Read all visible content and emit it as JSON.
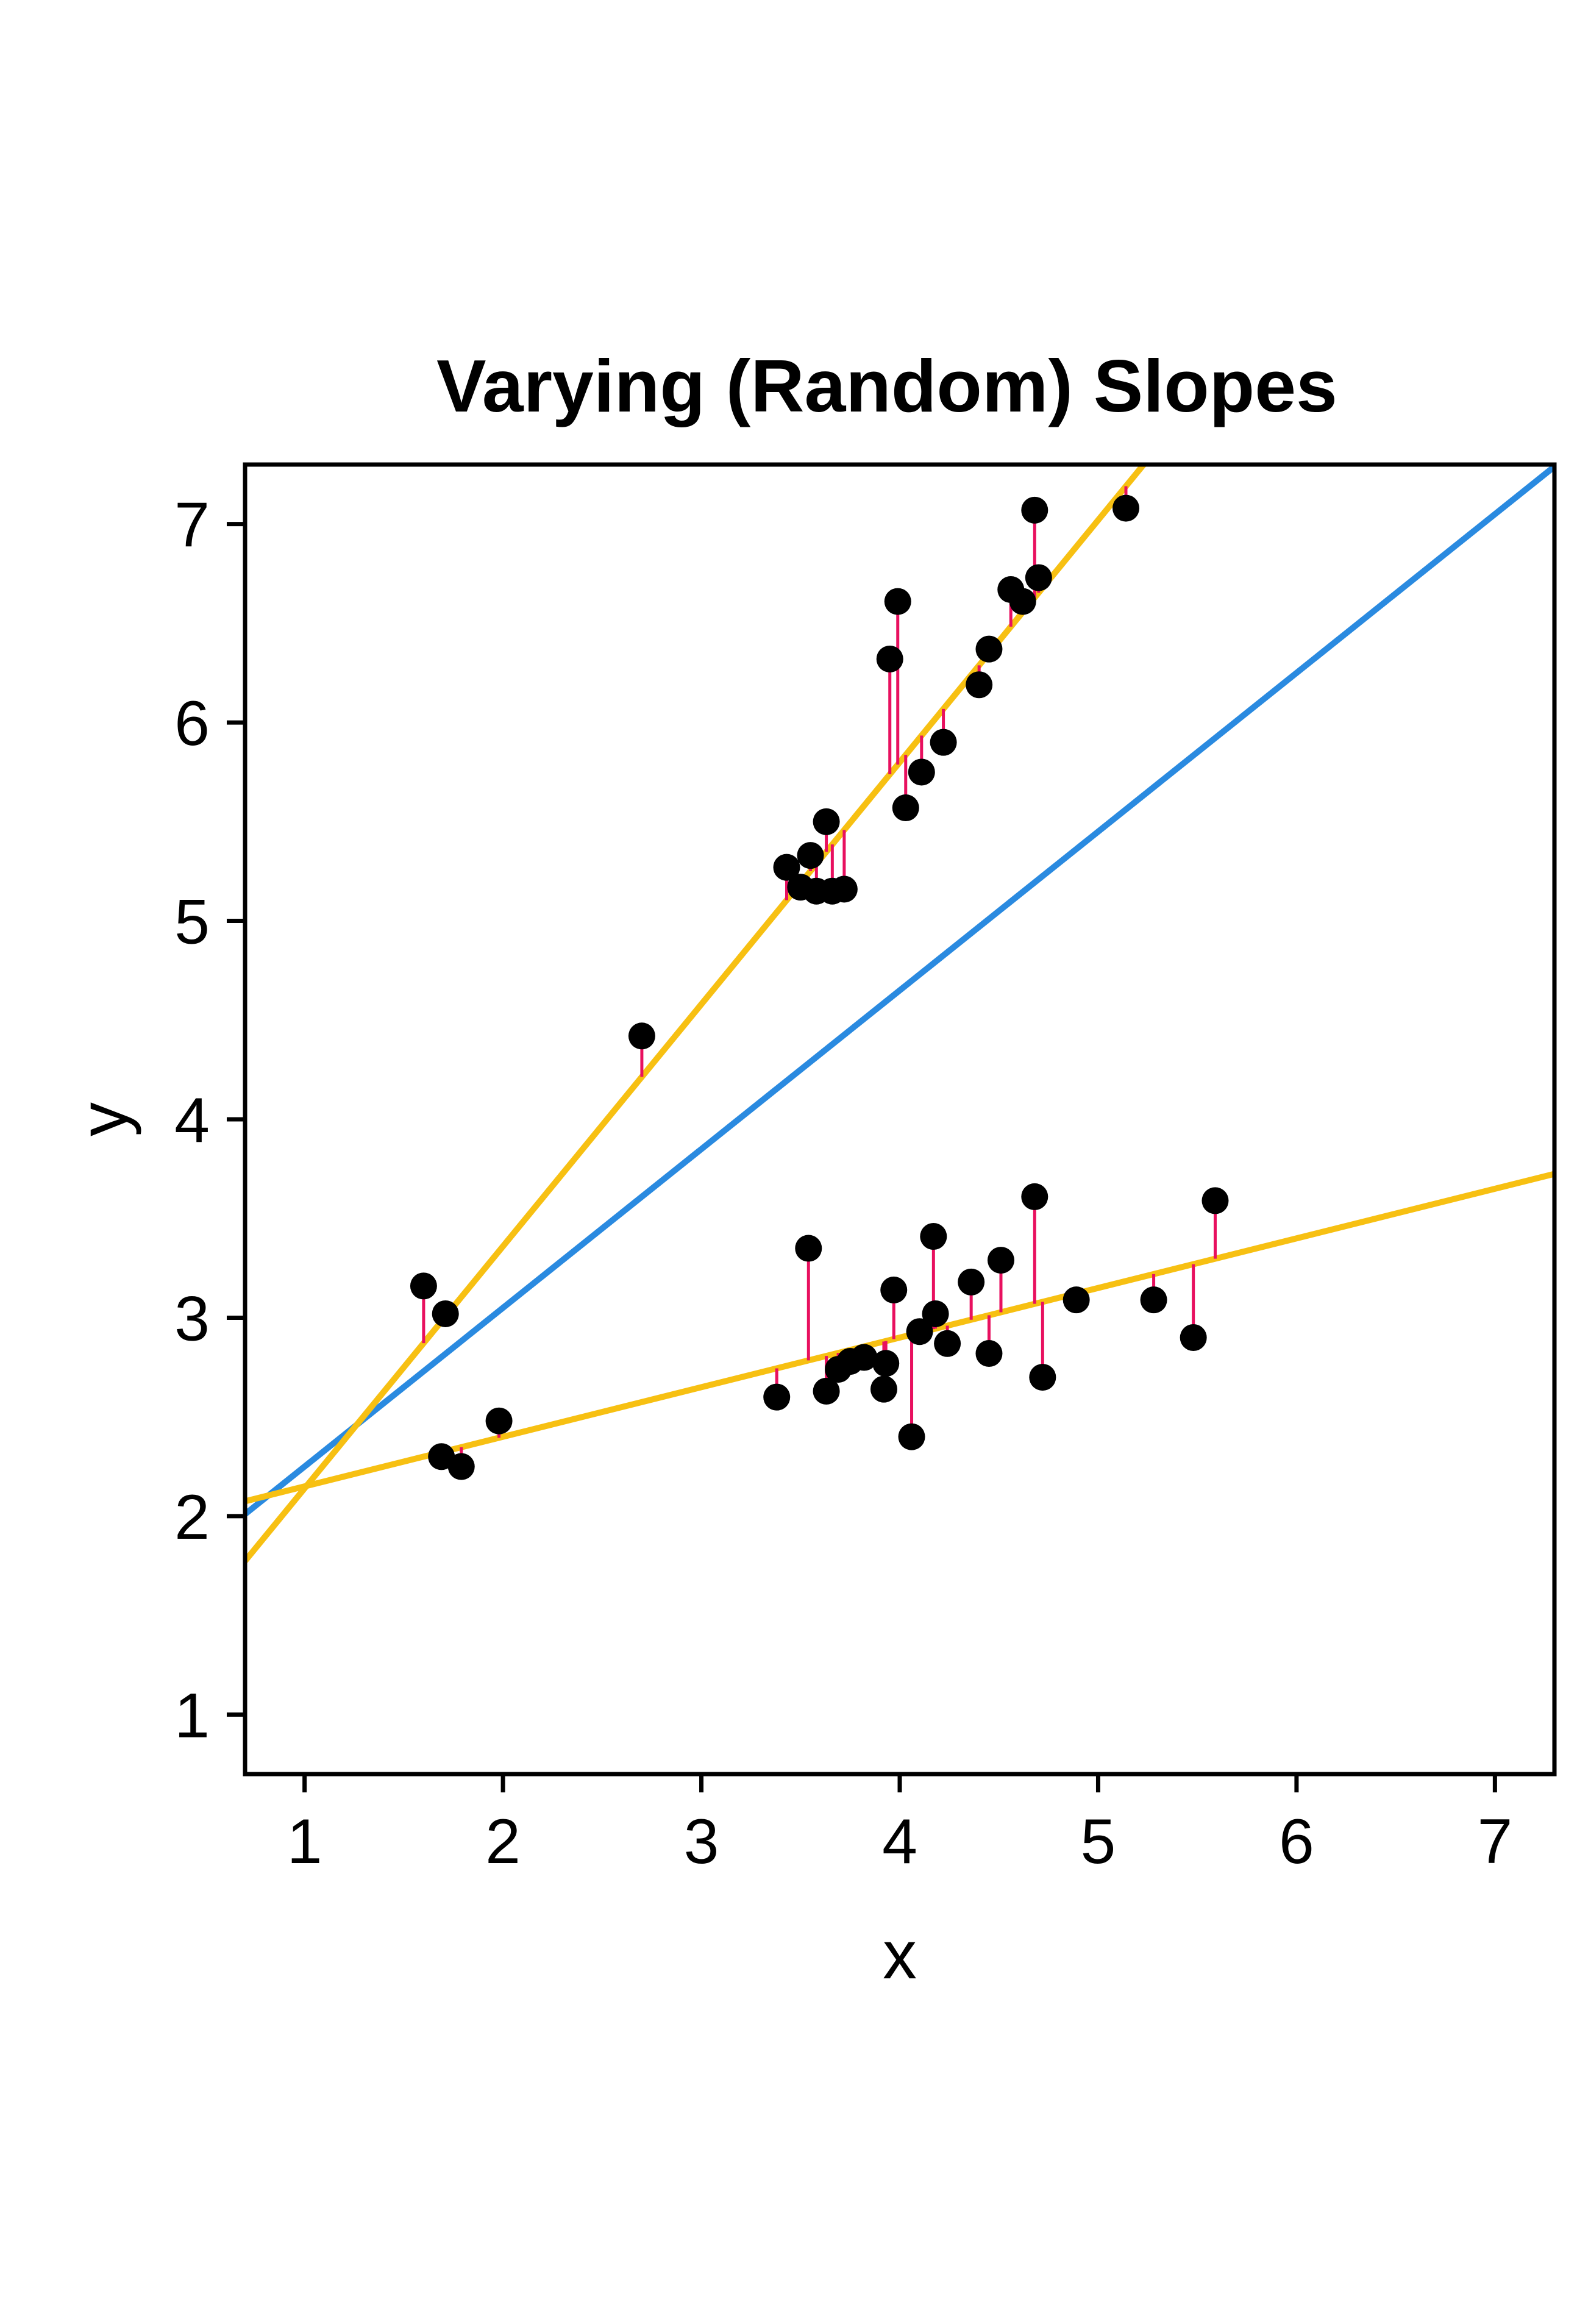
{
  "chart_data": {
    "type": "scatter",
    "title": "Varying (Random) Slopes",
    "xlabel": "x",
    "ylabel": "y",
    "xlim": [
      0.7,
      7.3
    ],
    "ylim": [
      0.7,
      7.3
    ],
    "xticks": [
      1,
      2,
      3,
      4,
      5,
      6,
      7
    ],
    "yticks": [
      1,
      2,
      3,
      4,
      5,
      6,
      7
    ],
    "grid": false,
    "legend": "none",
    "colors": {
      "points": "#000000",
      "residuals": "#e8105f",
      "group_lines": "#f7c012",
      "population_line": "#2a8ae0",
      "axes": "#000000"
    },
    "lines": [
      {
        "role": "population",
        "color": "#2a8ae0",
        "intercept": 1.45,
        "slope": 0.8
      },
      {
        "role": "group",
        "group": 1,
        "color": "#f7c012",
        "intercept": 0.92,
        "slope": 1.22
      },
      {
        "role": "group",
        "group": 2,
        "color": "#f7c012",
        "intercept": 1.9,
        "slope": 0.25
      }
    ],
    "series": [
      {
        "group": 1,
        "points": [
          [
            1.6,
            3.16
          ],
          [
            1.71,
            3.02
          ],
          [
            2.7,
            4.42
          ],
          [
            3.43,
            5.27
          ],
          [
            3.5,
            5.17
          ],
          [
            3.55,
            5.33
          ],
          [
            3.58,
            5.15
          ],
          [
            3.63,
            5.5
          ],
          [
            3.66,
            5.15
          ],
          [
            3.72,
            5.16
          ],
          [
            3.95,
            6.32
          ],
          [
            3.99,
            6.61
          ],
          [
            4.03,
            5.57
          ],
          [
            4.11,
            5.75
          ],
          [
            4.22,
            5.9
          ],
          [
            4.4,
            6.19
          ],
          [
            4.45,
            6.37
          ],
          [
            4.56,
            6.67
          ],
          [
            4.62,
            6.61
          ],
          [
            4.68,
            7.07
          ],
          [
            4.7,
            6.73
          ],
          [
            5.14,
            7.08
          ]
        ]
      },
      {
        "group": 2,
        "points": [
          [
            1.69,
            2.3
          ],
          [
            1.79,
            2.25
          ],
          [
            1.98,
            2.48
          ],
          [
            3.38,
            2.6
          ],
          [
            3.54,
            3.35
          ],
          [
            3.63,
            2.63
          ],
          [
            3.69,
            2.74
          ],
          [
            3.75,
            2.78
          ],
          [
            3.82,
            2.8
          ],
          [
            3.92,
            2.64
          ],
          [
            3.93,
            2.77
          ],
          [
            3.97,
            3.14
          ],
          [
            4.06,
            2.4
          ],
          [
            4.1,
            2.93
          ],
          [
            4.17,
            3.41
          ],
          [
            4.18,
            3.02
          ],
          [
            4.24,
            2.87
          ],
          [
            4.36,
            3.18
          ],
          [
            4.45,
            2.82
          ],
          [
            4.51,
            3.29
          ],
          [
            4.68,
            3.61
          ],
          [
            4.72,
            2.7
          ],
          [
            4.89,
            3.09
          ],
          [
            5.28,
            3.09
          ],
          [
            5.48,
            2.9
          ],
          [
            5.59,
            3.59
          ]
        ]
      }
    ]
  }
}
